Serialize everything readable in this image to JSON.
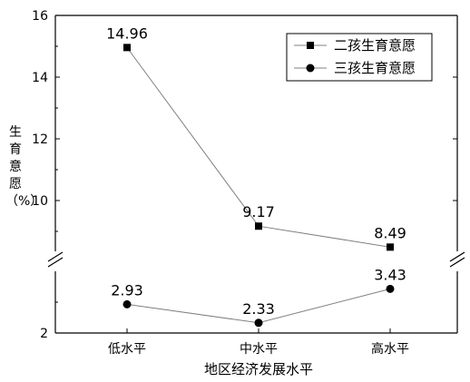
{
  "chart_data": {
    "type": "line",
    "categories": [
      "低水平",
      "中水平",
      "高水平"
    ],
    "series": [
      {
        "name": "二孩生育意愿",
        "marker": "square",
        "values": [
          14.96,
          9.17,
          8.49
        ]
      },
      {
        "name": "三孩生育意愿",
        "marker": "circle",
        "values": [
          2.93,
          2.33,
          3.43
        ]
      }
    ],
    "data_labels": [
      [
        "14.96",
        "9.17",
        "8.49"
      ],
      [
        "2.93",
        "2.33",
        "3.43"
      ]
    ],
    "xlabel": "地区经济发展水平",
    "ylabel": "生\n育\n意\n愿\n（%）",
    "y_ticks": [
      "2",
      "10",
      "12",
      "14",
      "16"
    ],
    "ylim": [
      2,
      16
    ],
    "axis_break": [
      4,
      8
    ],
    "grid": false,
    "legend_position": "top-right",
    "colors": {
      "line": "#808080",
      "marker": "#000000",
      "axis": "#000000"
    }
  }
}
